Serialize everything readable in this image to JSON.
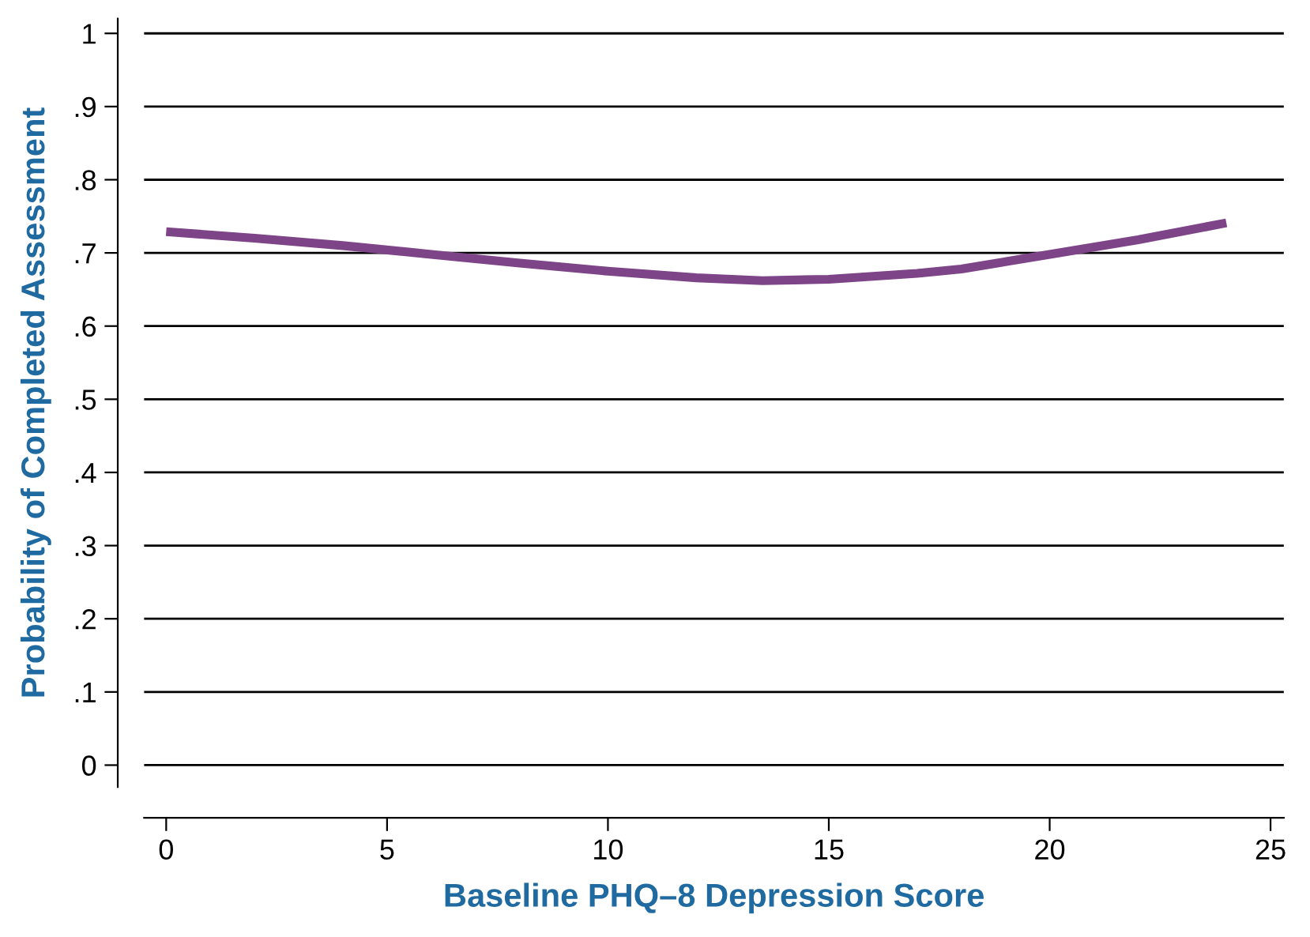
{
  "chart_data": {
    "type": "line",
    "xlabel": "Baseline PHQ–8 Depression Score",
    "ylabel": "Probability of Completed Assessment",
    "x": [
      0,
      2,
      4,
      6,
      8,
      10,
      12,
      13.5,
      15,
      17,
      18,
      20,
      22,
      24
    ],
    "series": [
      {
        "color": "#7d4488",
        "values": [
          0.729,
          0.72,
          0.71,
          0.698,
          0.686,
          0.675,
          0.666,
          0.662,
          0.664,
          0.672,
          0.678,
          0.698,
          0.718,
          0.741
        ]
      }
    ],
    "xlim": [
      -0.5,
      25.3
    ],
    "ylim": [
      -0.03,
      1.02
    ],
    "xticks": [
      0,
      5,
      10,
      15,
      20,
      25
    ],
    "yticks": [
      0,
      {
        "value": 0.1,
        "label": ".1"
      },
      {
        "value": 0.2,
        "label": ".2"
      },
      {
        "value": 0.3,
        "label": ".3"
      },
      {
        "value": 0.4,
        "label": ".4"
      },
      {
        "value": 0.5,
        "label": ".5"
      },
      {
        "value": 0.6,
        "label": ".6"
      },
      {
        "value": 0.7,
        "label": ".7"
      },
      {
        "value": 0.8,
        "label": ".8"
      },
      {
        "value": 0.9,
        "label": ".9"
      },
      1
    ],
    "grid": "y",
    "marker": "none",
    "line_style": "solid",
    "legend": false
  }
}
